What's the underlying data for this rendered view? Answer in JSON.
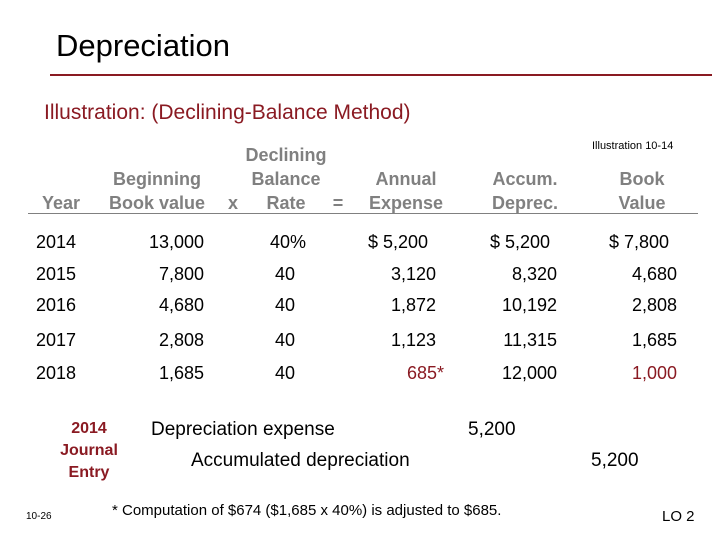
{
  "title": "Depreciation",
  "subtitle": "Illustration:  (Declining-Balance Method)",
  "illustration_ref": "Illustration 10-14",
  "headers": {
    "year": "Year",
    "beginning_1": "Beginning",
    "beginning_2": "Book value",
    "times": "x",
    "declining_1": "Declining",
    "declining_2": "Balance",
    "declining_3": "Rate",
    "equals": "=",
    "annual_1": "Annual",
    "annual_2": "Expense",
    "accum_1": "Accum.",
    "accum_2": "Deprec.",
    "book_1": "Book",
    "book_2": "Value"
  },
  "rows": [
    {
      "year": "2014",
      "beginning": "13,000",
      "rate": "40%",
      "expense": "$ 5,200",
      "accum": "$ 5,200",
      "book": "$ 7,800"
    },
    {
      "year": "2015",
      "beginning": "7,800",
      "rate": "40",
      "expense": "3,120",
      "accum": "8,320",
      "book": "4,680"
    },
    {
      "year": "2016",
      "beginning": "4,680",
      "rate": "40",
      "expense": "1,872",
      "accum": "10,192",
      "book": "2,808"
    },
    {
      "year": "2017",
      "beginning": "2,808",
      "rate": "40",
      "expense": "1,123",
      "accum": "11,315",
      "book": "1,685"
    },
    {
      "year": "2018",
      "beginning": "1,685",
      "rate": "40",
      "expense": "685*",
      "accum": "12,000",
      "book": "1,000"
    }
  ],
  "colors": {
    "accent": "#8a1a22",
    "header_gray": "#808080"
  },
  "journal_entry": {
    "label": "2014 Journal Entry",
    "debit_account": "Depreciation expense",
    "debit_amount": "5,200",
    "credit_account": "Accumulated depreciation",
    "credit_amount": "5,200"
  },
  "slide_number": "10-26",
  "footnote": "* Computation of $674 ($1,685 x 40%) is adjusted to $685.",
  "learning_objective": "LO 2"
}
